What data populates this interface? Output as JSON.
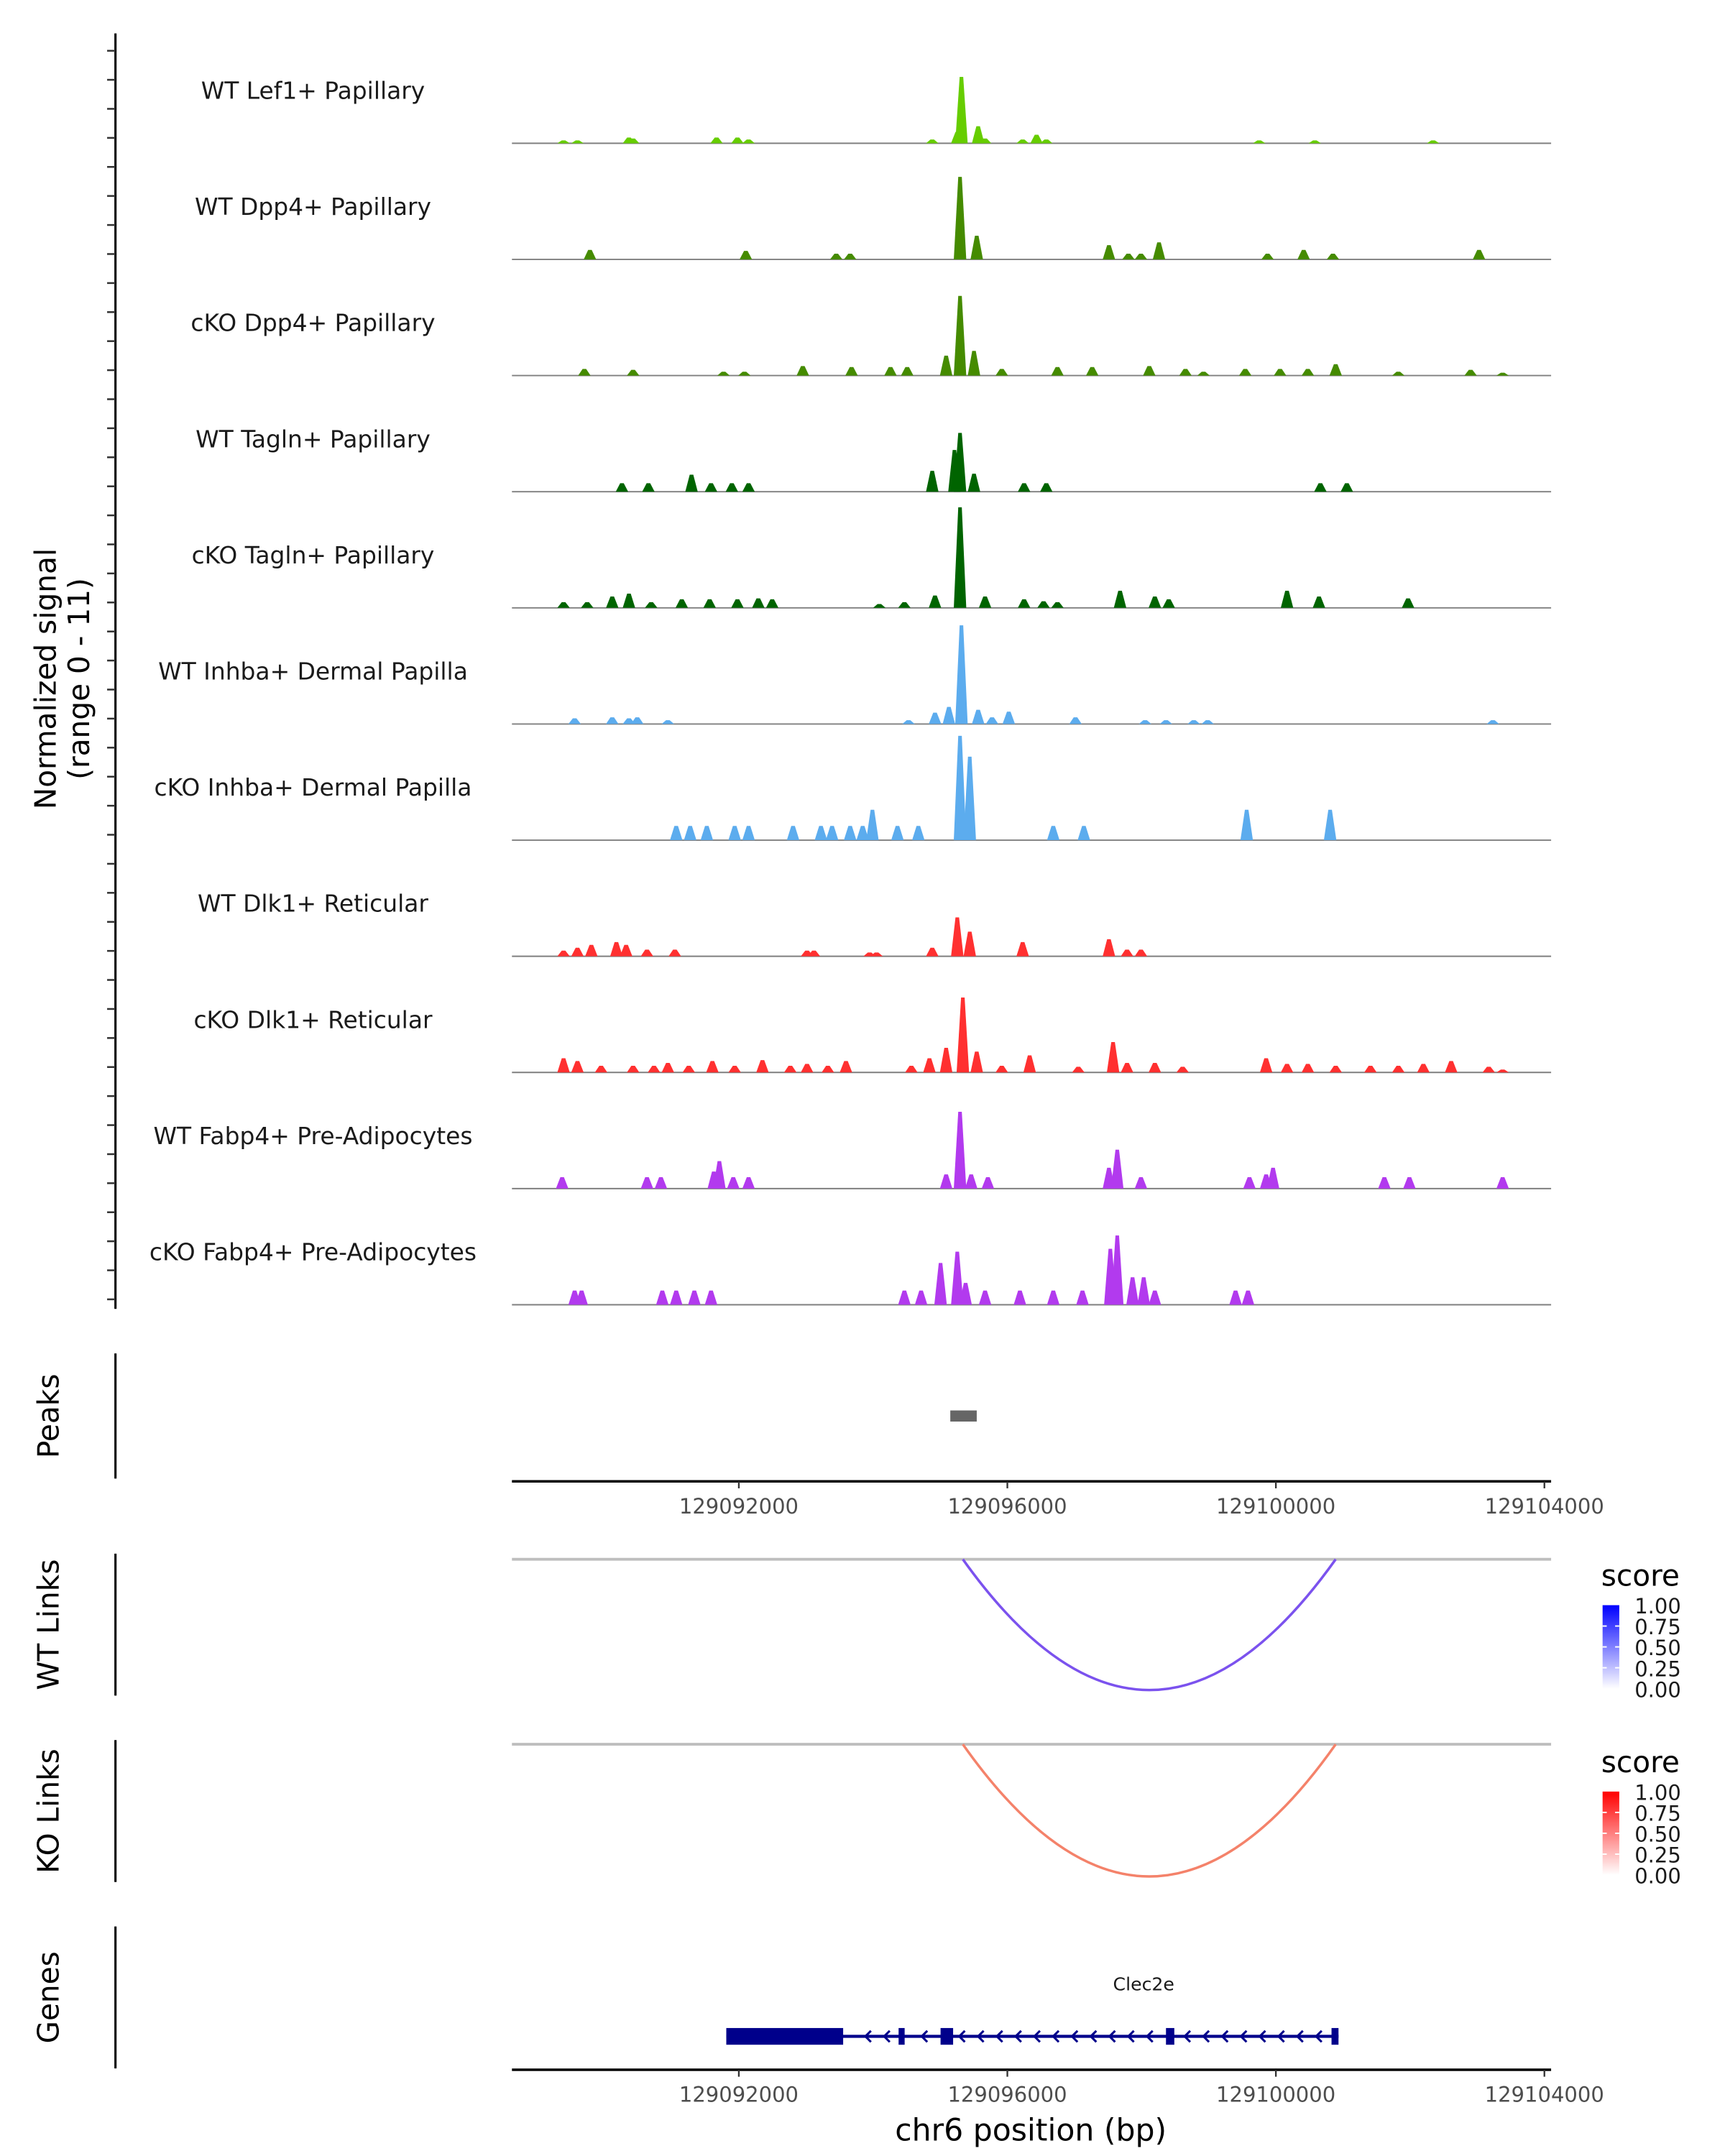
{
  "chart_data": {
    "type": "area",
    "title": "",
    "xlabel": "chr6 position (bp)",
    "ylabel": "Normalized signal\n(range 0 - 11)",
    "ylabel_lines": [
      "Normalized signal",
      "(range 0 - 11)"
    ],
    "ylim": [
      0,
      11
    ],
    "region": {
      "chrom": "chr6",
      "start": 129088620,
      "end": 129104100
    },
    "x_ticks": [
      129092000,
      129096000,
      129100000,
      129104000
    ],
    "x_tick_labels": [
      "129092000",
      "129096000",
      "129100000",
      "129104000"
    ],
    "tracks": [
      {
        "name": "WT Lef1+ Papillary",
        "color": "#66CD00",
        "peaks": [
          [
            129089389,
            0.3
          ],
          [
            129089596,
            0.3
          ],
          [
            129090363,
            0.6
          ],
          [
            129090425,
            0.5
          ],
          [
            129091668,
            0.6
          ],
          [
            129091979,
            0.6
          ],
          [
            129092145,
            0.4
          ],
          [
            129094881,
            0.4
          ],
          [
            129095254,
            1.2
          ],
          [
            129095316,
            7.0
          ],
          [
            129095565,
            1.8
          ],
          [
            129095668,
            0.5
          ],
          [
            129096228,
            0.4
          ],
          [
            129096435,
            0.9
          ],
          [
            129096580,
            0.4
          ],
          [
            129099751,
            0.3
          ],
          [
            129100580,
            0.3
          ],
          [
            129102342,
            0.3
          ]
        ]
      },
      {
        "name": "WT Dpp4+ Papillary",
        "color": "#458B00",
        "peaks": [
          [
            129089782,
            1.0
          ],
          [
            129092104,
            0.9
          ],
          [
            129093451,
            0.6
          ],
          [
            129093658,
            0.6
          ],
          [
            129095295,
            8.7
          ],
          [
            129095544,
            2.5
          ],
          [
            129097513,
            1.5
          ],
          [
            129097803,
            0.6
          ],
          [
            129097990,
            0.6
          ],
          [
            129098259,
            1.8
          ],
          [
            129099876,
            0.6
          ],
          [
            129100414,
            1.0
          ],
          [
            129100850,
            0.6
          ],
          [
            129103026,
            1.0
          ]
        ]
      },
      {
        "name": "cKO Dpp4+ Papillary",
        "color": "#458B00",
        "peaks": [
          [
            129089699,
            0.7
          ],
          [
            129090425,
            0.6
          ],
          [
            129091772,
            0.4
          ],
          [
            129092083,
            0.4
          ],
          [
            129092953,
            1.0
          ],
          [
            129093679,
            0.9
          ],
          [
            129094259,
            0.9
          ],
          [
            129094508,
            0.9
          ],
          [
            129095088,
            2.1
          ],
          [
            129095295,
            8.4
          ],
          [
            129095503,
            2.6
          ],
          [
            129095917,
            0.7
          ],
          [
            129096746,
            0.9
          ],
          [
            129097264,
            0.9
          ],
          [
            129098114,
            1.0
          ],
          [
            129098653,
            0.7
          ],
          [
            129098922,
            0.4
          ],
          [
            129099544,
            0.7
          ],
          [
            129100062,
            0.7
          ],
          [
            129100476,
            0.7
          ],
          [
            129100891,
            1.2
          ],
          [
            129101824,
            0.4
          ],
          [
            129102901,
            0.6
          ],
          [
            129103378,
            0.3
          ]
        ]
      },
      {
        "name": "WT Tagln+ Papillary",
        "color": "#006400",
        "peaks": [
          [
            129090259,
            0.9
          ],
          [
            129090653,
            0.9
          ],
          [
            129091295,
            1.8
          ],
          [
            129091586,
            0.9
          ],
          [
            129091896,
            0.9
          ],
          [
            129092145,
            0.9
          ],
          [
            129094881,
            2.2
          ],
          [
            129095212,
            4.4
          ],
          [
            129095295,
            6.2
          ],
          [
            129095503,
            1.9
          ],
          [
            129096249,
            0.9
          ],
          [
            129096580,
            0.9
          ],
          [
            129100663,
            0.9
          ],
          [
            129101057,
            0.9
          ]
        ]
      },
      {
        "name": "cKO Tagln+ Papillary",
        "color": "#006400",
        "peaks": [
          [
            129089389,
            0.6
          ],
          [
            129089741,
            0.6
          ],
          [
            129090114,
            1.2
          ],
          [
            129090363,
            1.5
          ],
          [
            129090694,
            0.6
          ],
          [
            129091150,
            0.9
          ],
          [
            129091565,
            0.9
          ],
          [
            129091979,
            0.9
          ],
          [
            129092290,
            1.0
          ],
          [
            129092497,
            0.9
          ],
          [
            129094093,
            0.4
          ],
          [
            129094466,
            0.6
          ],
          [
            129094922,
            1.3
          ],
          [
            129095295,
            10.6
          ],
          [
            129095668,
            1.2
          ],
          [
            129096249,
            0.9
          ],
          [
            129096539,
            0.7
          ],
          [
            129096746,
            0.6
          ],
          [
            129097679,
            1.8
          ],
          [
            129098197,
            1.2
          ],
          [
            129098404,
            0.9
          ],
          [
            129100166,
            1.8
          ],
          [
            129100642,
            1.2
          ],
          [
            129101969,
            1.0
          ]
        ]
      },
      {
        "name": "WT Inhba+ Dermal Papilla",
        "color": "#5CACEE",
        "peaks": [
          [
            129089554,
            0.6
          ],
          [
            129090114,
            0.7
          ],
          [
            129090363,
            0.6
          ],
          [
            129090487,
            0.7
          ],
          [
            129090943,
            0.4
          ],
          [
            129094528,
            0.4
          ],
          [
            129094922,
            1.2
          ],
          [
            129095129,
            1.8
          ],
          [
            129095316,
            10.4
          ],
          [
            129095565,
            1.5
          ],
          [
            129095772,
            0.7
          ],
          [
            129096021,
            1.3
          ],
          [
            129097015,
            0.7
          ],
          [
            129098052,
            0.4
          ],
          [
            129098363,
            0.4
          ],
          [
            129098777,
            0.4
          ],
          [
            129098984,
            0.4
          ],
          [
            129103233,
            0.4
          ]
        ]
      },
      {
        "name": "cKO Inhba+ Dermal Papilla",
        "color": "#5CACEE",
        "peaks": [
          [
            129091067,
            1.5
          ],
          [
            129091275,
            1.5
          ],
          [
            129091523,
            1.5
          ],
          [
            129091938,
            1.5
          ],
          [
            129092145,
            1.5
          ],
          [
            129092808,
            1.5
          ],
          [
            129093223,
            1.5
          ],
          [
            129093389,
            1.5
          ],
          [
            129093658,
            1.5
          ],
          [
            129093845,
            1.5
          ],
          [
            129093990,
            3.2
          ],
          [
            129094363,
            1.5
          ],
          [
            129094674,
            1.5
          ],
          [
            129095295,
            11.0
          ],
          [
            129095440,
            8.8
          ],
          [
            129096684,
            1.5
          ],
          [
            129097140,
            1.5
          ],
          [
            129099565,
            3.2
          ],
          [
            129100808,
            3.2
          ]
        ]
      },
      {
        "name": "WT Dlk1+ Reticular",
        "color": "#FF3030",
        "peaks": [
          [
            129089389,
            0.6
          ],
          [
            129089596,
            0.9
          ],
          [
            129089803,
            1.2
          ],
          [
            129090176,
            1.5
          ],
          [
            129090321,
            1.2
          ],
          [
            129090632,
            0.7
          ],
          [
            129091047,
            0.7
          ],
          [
            129093016,
            0.6
          ],
          [
            129093119,
            0.6
          ],
          [
            129093948,
            0.4
          ],
          [
            129094052,
            0.4
          ],
          [
            129094881,
            0.9
          ],
          [
            129095254,
            4.1
          ],
          [
            129095440,
            2.6
          ],
          [
            129096228,
            1.5
          ],
          [
            129097513,
            1.8
          ],
          [
            129097783,
            0.7
          ],
          [
            129097990,
            0.7
          ]
        ]
      },
      {
        "name": "cKO Dlk1+ Reticular",
        "color": "#FF3030",
        "peaks": [
          [
            129089389,
            1.5
          ],
          [
            129089596,
            1.2
          ],
          [
            129089948,
            0.7
          ],
          [
            129090425,
            0.7
          ],
          [
            129090736,
            0.7
          ],
          [
            129090943,
            1.0
          ],
          [
            129091254,
            0.7
          ],
          [
            129091606,
            1.2
          ],
          [
            129091938,
            0.7
          ],
          [
            129092352,
            1.3
          ],
          [
            129092767,
            0.7
          ],
          [
            129093016,
            0.9
          ],
          [
            129093326,
            0.7
          ],
          [
            129093596,
            1.2
          ],
          [
            129094570,
            0.7
          ],
          [
            129094839,
            1.5
          ],
          [
            129095088,
            2.6
          ],
          [
            129095337,
            7.9
          ],
          [
            129095544,
            2.2
          ],
          [
            129095917,
            0.7
          ],
          [
            129096332,
            1.8
          ],
          [
            129097057,
            0.6
          ],
          [
            129097575,
            3.2
          ],
          [
            129097783,
            1.0
          ],
          [
            129098197,
            1.0
          ],
          [
            129098611,
            0.6
          ],
          [
            129099855,
            1.5
          ],
          [
            129100166,
            0.9
          ],
          [
            129100476,
            0.9
          ],
          [
            129100891,
            0.7
          ],
          [
            129101409,
            0.7
          ],
          [
            129101824,
            0.7
          ],
          [
            129102197,
            0.9
          ],
          [
            129102611,
            1.2
          ],
          [
            129103171,
            0.6
          ],
          [
            129103378,
            0.3
          ]
        ]
      },
      {
        "name": "WT Fabp4+ Pre-Adipocytes",
        "color": "#B23AEE",
        "peaks": [
          [
            129089368,
            1.2
          ],
          [
            129090632,
            1.2
          ],
          [
            129090839,
            1.2
          ],
          [
            129091627,
            1.8
          ],
          [
            129091710,
            2.9
          ],
          [
            129091917,
            1.2
          ],
          [
            129092145,
            1.2
          ],
          [
            129095088,
            1.5
          ],
          [
            129095295,
            8.1
          ],
          [
            129095461,
            1.5
          ],
          [
            129095710,
            1.2
          ],
          [
            129097513,
            2.2
          ],
          [
            129097637,
            4.1
          ],
          [
            129097990,
            1.2
          ],
          [
            129099606,
            1.2
          ],
          [
            129099855,
            1.5
          ],
          [
            129099958,
            2.2
          ],
          [
            129101616,
            1.2
          ],
          [
            129101989,
            1.2
          ],
          [
            129103378,
            1.2
          ]
        ]
      },
      {
        "name": "cKO Fabp4+ Pre-Adipocytes",
        "color": "#B23AEE",
        "peaks": [
          [
            129089554,
            1.5
          ],
          [
            129089658,
            1.5
          ],
          [
            129090860,
            1.5
          ],
          [
            129091067,
            1.5
          ],
          [
            129091337,
            1.5
          ],
          [
            129091586,
            1.5
          ],
          [
            129094466,
            1.5
          ],
          [
            129094715,
            1.5
          ],
          [
            129095005,
            4.4
          ],
          [
            129095254,
            5.6
          ],
          [
            129095378,
            2.3
          ],
          [
            129095668,
            1.5
          ],
          [
            129096187,
            1.5
          ],
          [
            129096684,
            1.5
          ],
          [
            129097119,
            1.5
          ],
          [
            129097534,
            5.9
          ],
          [
            129097637,
            7.3
          ],
          [
            129097865,
            2.9
          ],
          [
            129098031,
            2.9
          ],
          [
            129098197,
            1.5
          ],
          [
            129099399,
            1.5
          ],
          [
            129099585,
            1.5
          ]
        ]
      }
    ],
    "peaks_track": {
      "label": "Peaks",
      "color": "#666666",
      "regions": [
        [
          129095150,
          129095544
        ]
      ]
    },
    "links": [
      {
        "label": "WT Links",
        "start": 129095337,
        "end": 129100891,
        "score": 0.55,
        "legend": {
          "title": "score",
          "ticks": [
            "1.00",
            "0.75",
            "0.50",
            "0.25",
            "0.00"
          ],
          "low_color": "#FFFFFF",
          "high_color": "#0000FF"
        },
        "arc_color": "#7B52EE"
      },
      {
        "label": "KO Links",
        "start": 129095337,
        "end": 129100891,
        "score": 0.55,
        "legend": {
          "title": "score",
          "ticks": [
            "1.00",
            "0.75",
            "0.50",
            "0.25",
            "0.00"
          ],
          "low_color": "#FFFFFF",
          "high_color": "#FF0000"
        },
        "arc_color": "#F4826A"
      }
    ],
    "genes": {
      "label": "Genes",
      "color": "#00008B",
      "items": [
        {
          "name": "Clec2e",
          "strand": "-",
          "start": 129091813,
          "end": 129100933,
          "exons": [
            [
              129091813,
              129093554
            ],
            [
              129094380,
              129094470
            ],
            [
              129095005,
              129095192
            ],
            [
              129098363,
              129098487
            ],
            [
              129100829,
              129100933
            ]
          ]
        }
      ]
    },
    "legend_position": "right"
  }
}
